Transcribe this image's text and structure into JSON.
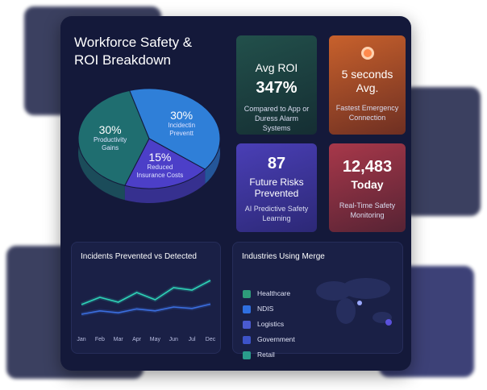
{
  "title": "Workforce Safety & ROI Breakdown",
  "pie": {
    "type": "pie",
    "values": [
      30,
      30,
      15
    ],
    "value_labels": [
      "30%",
      "30%",
      "15%"
    ],
    "names": [
      "Productivity Gains",
      "Incidectin Preventt",
      "Reduced Insurance Costs"
    ],
    "colors": [
      "#1f6e70",
      "#2f7fd8",
      "#4c3fc8"
    ]
  },
  "cards": [
    {
      "heading": "Avg ROI",
      "value": "347%",
      "caption": "Compared to App or Duress Alarm Systems"
    },
    {
      "value": "5 seconds Avg.",
      "caption": "Fastest Emergency Connection"
    },
    {
      "value": "87",
      "heading": "Future Risks Prevented",
      "caption": "AI Predictive Safety Learning"
    },
    {
      "value": "12,483",
      "heading": "Today",
      "caption": "Real-Time Safety Monitoring"
    }
  ],
  "line_chart": {
    "type": "line",
    "title": "Incidents Prevented vs Detected",
    "categories": [
      "Jan",
      "Feb",
      "Mar",
      "Apr",
      "May",
      "Jun",
      "Jul",
      "Dec"
    ],
    "ylim": [
      0,
      100
    ],
    "series": [
      {
        "color": "#2ed3b7",
        "values": [
          35,
          50,
          40,
          60,
          45,
          70,
          65,
          85
        ]
      },
      {
        "color": "#3b6fe0",
        "values": [
          15,
          22,
          18,
          26,
          22,
          30,
          27,
          36
        ]
      }
    ]
  },
  "industries": {
    "title": "Industries Using Merge",
    "items": [
      "Healthcare",
      "NDIS",
      "Logistics",
      "Government",
      "Retail"
    ]
  }
}
